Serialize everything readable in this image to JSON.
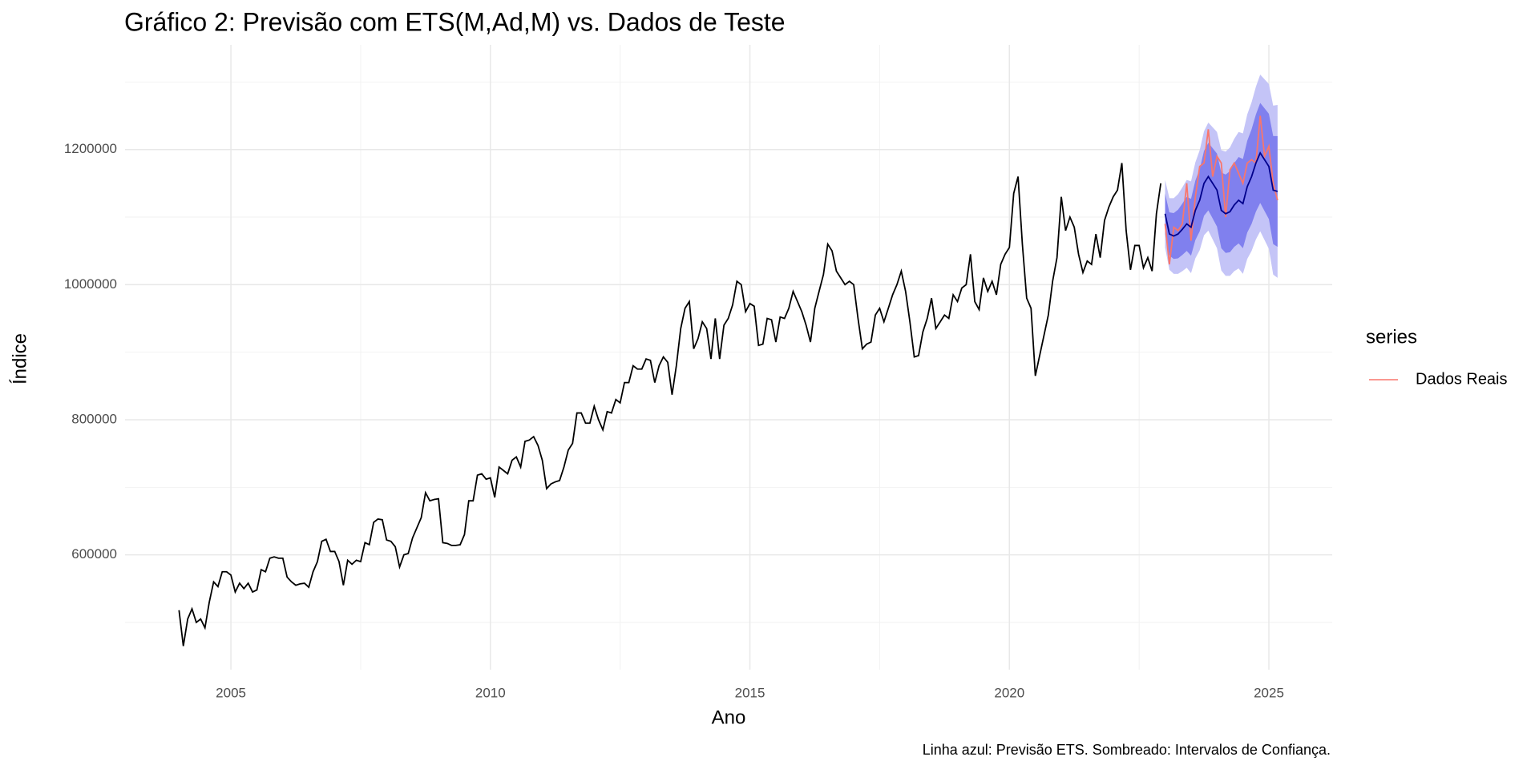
{
  "chart_data": {
    "type": "forecast",
    "title": "Gráfico 2: Previsão com ETS(M,Ad,M) vs. Dados de Teste",
    "x_label": "Ano",
    "y_label": "Índice",
    "caption": "Linha azul: Previsão ETS. Sombreado: Intervalos de Confiança.",
    "legend_title": "series",
    "legend_position": "right",
    "grid": true,
    "xlim": [
      2002.96,
      2026.22
    ],
    "ylim": [
      430000,
      1355000
    ],
    "xticks": [
      2005,
      2010,
      2015,
      2020,
      2025
    ],
    "yticks": [
      600000,
      800000,
      1000000,
      1200000
    ],
    "minor_xticks": [
      2007.5,
      2012.5,
      2017.5,
      2022.5
    ],
    "minor_yticks": [
      500000,
      700000,
      900000,
      1100000,
      1300000
    ],
    "history": {
      "color": "#000000",
      "x": [
        2004,
        2004.083,
        2004.167,
        2004.25,
        2004.333,
        2004.417,
        2004.5,
        2004.583,
        2004.667,
        2004.75,
        2004.833,
        2004.917,
        2005,
        2005.083,
        2005.167,
        2005.25,
        2005.333,
        2005.417,
        2005.5,
        2005.583,
        2005.667,
        2005.75,
        2005.833,
        2005.917,
        2006,
        2006.083,
        2006.167,
        2006.25,
        2006.333,
        2006.417,
        2006.5,
        2006.583,
        2006.667,
        2006.75,
        2006.833,
        2006.917,
        2007,
        2007.083,
        2007.167,
        2007.25,
        2007.333,
        2007.417,
        2007.5,
        2007.583,
        2007.667,
        2007.75,
        2007.833,
        2007.917,
        2008,
        2008.083,
        2008.167,
        2008.25,
        2008.333,
        2008.417,
        2008.5,
        2008.583,
        2008.667,
        2008.75,
        2008.833,
        2008.917,
        2009,
        2009.083,
        2009.167,
        2009.25,
        2009.333,
        2009.417,
        2009.5,
        2009.583,
        2009.667,
        2009.75,
        2009.833,
        2009.917,
        2010,
        2010.083,
        2010.167,
        2010.25,
        2010.333,
        2010.417,
        2010.5,
        2010.583,
        2010.667,
        2010.75,
        2010.833,
        2010.917,
        2011,
        2011.083,
        2011.167,
        2011.25,
        2011.333,
        2011.417,
        2011.5,
        2011.583,
        2011.667,
        2011.75,
        2011.833,
        2011.917,
        2012,
        2012.083,
        2012.167,
        2012.25,
        2012.333,
        2012.417,
        2012.5,
        2012.583,
        2012.667,
        2012.75,
        2012.833,
        2012.917,
        2013,
        2013.083,
        2013.167,
        2013.25,
        2013.333,
        2013.417,
        2013.5,
        2013.583,
        2013.667,
        2013.75,
        2013.833,
        2013.917,
        2014,
        2014.083,
        2014.167,
        2014.25,
        2014.333,
        2014.417,
        2014.5,
        2014.583,
        2014.667,
        2014.75,
        2014.833,
        2014.917,
        2015,
        2015.083,
        2015.167,
        2015.25,
        2015.333,
        2015.417,
        2015.5,
        2015.583,
        2015.667,
        2015.75,
        2015.833,
        2015.917,
        2016,
        2016.083,
        2016.167,
        2016.25,
        2016.333,
        2016.417,
        2016.5,
        2016.583,
        2016.667,
        2016.75,
        2016.833,
        2016.917,
        2017,
        2017.083,
        2017.167,
        2017.25,
        2017.333,
        2017.417,
        2017.5,
        2017.583,
        2017.667,
        2017.75,
        2017.833,
        2017.917,
        2018,
        2018.083,
        2018.167,
        2018.25,
        2018.333,
        2018.417,
        2018.5,
        2018.583,
        2018.667,
        2018.75,
        2018.833,
        2018.917,
        2019,
        2019.083,
        2019.167,
        2019.25,
        2019.333,
        2019.417,
        2019.5,
        2019.583,
        2019.667,
        2019.75,
        2019.833,
        2019.917,
        2020,
        2020.083,
        2020.167,
        2020.25,
        2020.333,
        2020.417,
        2020.5,
        2020.583,
        2020.667,
        2020.75,
        2020.833,
        2020.917,
        2021,
        2021.083,
        2021.167,
        2021.25,
        2021.333,
        2021.417,
        2021.5,
        2021.583,
        2021.667,
        2021.75,
        2021.833,
        2021.917,
        2022,
        2022.083,
        2022.167,
        2022.25,
        2022.333,
        2022.417,
        2022.5,
        2022.583,
        2022.667,
        2022.75,
        2022.833,
        2022.917
      ],
      "values": [
        518000,
        465000,
        505000,
        520000,
        500000,
        505000,
        492000,
        530000,
        560000,
        553000,
        575000,
        575000,
        570000,
        545000,
        558000,
        550000,
        558000,
        545000,
        548000,
        578000,
        575000,
        595000,
        597000,
        595000,
        595000,
        567000,
        560000,
        555000,
        557000,
        558000,
        552000,
        575000,
        590000,
        620000,
        623000,
        605000,
        605000,
        590000,
        555000,
        592000,
        586000,
        592000,
        590000,
        618000,
        615000,
        648000,
        653000,
        652000,
        622000,
        620000,
        612000,
        582000,
        600000,
        602000,
        625000,
        640000,
        655000,
        692000,
        680000,
        682000,
        683000,
        618000,
        617000,
        614000,
        614000,
        615000,
        630000,
        680000,
        680000,
        718000,
        720000,
        712000,
        714000,
        685000,
        730000,
        725000,
        720000,
        740000,
        745000,
        730000,
        768000,
        770000,
        775000,
        762000,
        740000,
        698000,
        705000,
        708000,
        710000,
        730000,
        755000,
        765000,
        810000,
        810000,
        795000,
        795000,
        820000,
        800000,
        785000,
        812000,
        810000,
        830000,
        825000,
        855000,
        855000,
        880000,
        875000,
        875000,
        890000,
        888000,
        855000,
        880000,
        893000,
        885000,
        837000,
        880000,
        935000,
        965000,
        975000,
        905000,
        920000,
        945000,
        935000,
        890000,
        950000,
        890000,
        940000,
        950000,
        970000,
        1005000,
        1000000,
        960000,
        972000,
        968000,
        910000,
        912000,
        950000,
        948000,
        915000,
        952000,
        950000,
        965000,
        990000,
        975000,
        960000,
        940000,
        915000,
        965000,
        990000,
        1015000,
        1060000,
        1050000,
        1020000,
        1010000,
        1000000,
        1005000,
        1000000,
        950000,
        905000,
        912000,
        915000,
        955000,
        965000,
        945000,
        965000,
        985000,
        1000000,
        1020000,
        990000,
        945000,
        893000,
        895000,
        930000,
        950000,
        980000,
        935000,
        945000,
        955000,
        950000,
        985000,
        975000,
        995000,
        1000000,
        1045000,
        975000,
        963000,
        1010000,
        990000,
        1005000,
        985000,
        1030000,
        1045000,
        1055000,
        1135000,
        1160000,
        1060000,
        980000,
        965000,
        865000,
        895000,
        925000,
        955000,
        1005000,
        1040000,
        1130000,
        1080000,
        1100000,
        1085000,
        1045000,
        1018000,
        1035000,
        1030000,
        1075000,
        1040000,
        1095000,
        1115000,
        1130000,
        1140000,
        1180000,
        1080000,
        1022000,
        1058000,
        1058000,
        1025000,
        1040000,
        1020000,
        1105000,
        1150000
      ]
    },
    "forecast": {
      "color": "#00008b",
      "color80": "#8080ee",
      "color95": "#c4c4f7",
      "x": [
        2023,
        2023.083,
        2023.167,
        2023.25,
        2023.333,
        2023.417,
        2023.5,
        2023.583,
        2023.667,
        2023.75,
        2023.833,
        2023.917,
        2024,
        2024.083,
        2024.167,
        2024.25,
        2024.333,
        2024.417,
        2024.5,
        2024.583,
        2024.667,
        2024.75,
        2024.833,
        2024.917,
        2025,
        2025.083,
        2025.167
      ],
      "mean": [
        1105000,
        1075000,
        1072000,
        1075000,
        1082000,
        1090000,
        1085000,
        1110000,
        1125000,
        1150000,
        1160000,
        1150000,
        1140000,
        1110000,
        1105000,
        1108000,
        1118000,
        1125000,
        1120000,
        1145000,
        1160000,
        1180000,
        1195000,
        1185000,
        1175000,
        1140000,
        1138000
      ],
      "lo80": [
        1075000,
        1043000,
        1038000,
        1039000,
        1044000,
        1050000,
        1043000,
        1066000,
        1079000,
        1102000,
        1110000,
        1098000,
        1086000,
        1054000,
        1047000,
        1048000,
        1056000,
        1061000,
        1054000,
        1077000,
        1090000,
        1108000,
        1121000,
        1109000,
        1097000,
        1060000,
        1056000
      ],
      "hi80": [
        1135000,
        1107000,
        1106000,
        1111000,
        1120000,
        1130000,
        1127000,
        1154000,
        1171000,
        1198000,
        1210000,
        1202000,
        1194000,
        1166000,
        1163000,
        1168000,
        1180000,
        1189000,
        1186000,
        1213000,
        1230000,
        1252000,
        1269000,
        1261000,
        1253000,
        1220000,
        1220000
      ],
      "lo95": [
        1055000,
        1022000,
        1016000,
        1016000,
        1020000,
        1025000,
        1017000,
        1039000,
        1051000,
        1073000,
        1080000,
        1067000,
        1054000,
        1021000,
        1013000,
        1013000,
        1020000,
        1024000,
        1016000,
        1038000,
        1050000,
        1067000,
        1079000,
        1066000,
        1053000,
        1015000,
        1010000
      ],
      "hi95": [
        1155000,
        1128000,
        1128000,
        1134000,
        1144000,
        1155000,
        1153000,
        1181000,
        1199000,
        1227000,
        1240000,
        1233000,
        1226000,
        1199000,
        1197000,
        1203000,
        1216000,
        1226000,
        1224000,
        1252000,
        1270000,
        1293000,
        1311000,
        1304000,
        1297000,
        1265000,
        1266000
      ]
    },
    "series": [
      {
        "name": "Dados Reais",
        "color": "#f8766d",
        "values": [
          1090000,
          1030000,
          1085000,
          1080000,
          1090000,
          1150000,
          1065000,
          1130000,
          1175000,
          1180000,
          1230000,
          1160000,
          1190000,
          1180000,
          1100000,
          1170000,
          1180000,
          1165000,
          1150000,
          1180000,
          1185000,
          1180000,
          1250000,
          1190000,
          1205000,
          1150000,
          1125000
        ]
      }
    ]
  }
}
